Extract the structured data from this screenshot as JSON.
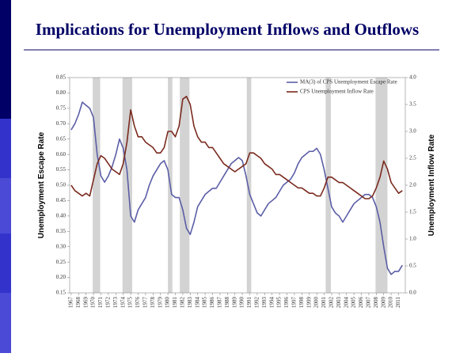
{
  "title": "Implications for Unemployment Inflows and Outflows",
  "chart_data": {
    "type": "line",
    "y_label": "Unemployment Escape Rate",
    "y2_label": "Unemployment Inflow Rate",
    "x": [
      1967.0,
      1967.5,
      1968.0,
      1968.5,
      1969.0,
      1969.5,
      1970.0,
      1970.5,
      1971.0,
      1971.5,
      1972.0,
      1972.5,
      1973.0,
      1973.5,
      1974.0,
      1974.5,
      1975.0,
      1975.5,
      1976.0,
      1976.5,
      1977.0,
      1977.5,
      1978.0,
      1978.5,
      1979.0,
      1979.5,
      1980.0,
      1980.5,
      1981.0,
      1981.5,
      1982.0,
      1982.5,
      1983.0,
      1983.5,
      1984.0,
      1984.5,
      1985.0,
      1985.5,
      1986.0,
      1986.5,
      1987.0,
      1987.5,
      1988.0,
      1988.5,
      1989.0,
      1989.5,
      1990.0,
      1990.5,
      1991.0,
      1991.5,
      1992.0,
      1992.5,
      1993.0,
      1993.5,
      1994.0,
      1994.5,
      1995.0,
      1995.5,
      1996.0,
      1996.5,
      1997.0,
      1997.5,
      1998.0,
      1998.5,
      1999.0,
      1999.5,
      2000.0,
      2000.5,
      2001.0,
      2001.5,
      2002.0,
      2002.5,
      2003.0,
      2003.5,
      2004.0,
      2004.5,
      2005.0,
      2005.5,
      2006.0,
      2006.5,
      2007.0,
      2007.5,
      2008.0,
      2008.5,
      2009.0,
      2009.5,
      2010.0,
      2010.5,
      2011.0,
      2011.5
    ],
    "series": [
      {
        "name": "MA(3) of CPS Unemployment Escape Rate",
        "color": "#5b5ea6",
        "axis": "y",
        "values": [
          0.68,
          0.7,
          0.73,
          0.77,
          0.76,
          0.75,
          0.72,
          0.6,
          0.53,
          0.51,
          0.53,
          0.56,
          0.6,
          0.65,
          0.62,
          0.55,
          0.4,
          0.38,
          0.42,
          0.44,
          0.46,
          0.5,
          0.53,
          0.55,
          0.57,
          0.58,
          0.55,
          0.47,
          0.46,
          0.46,
          0.42,
          0.36,
          0.34,
          0.38,
          0.43,
          0.45,
          0.47,
          0.48,
          0.49,
          0.49,
          0.51,
          0.53,
          0.55,
          0.57,
          0.58,
          0.59,
          0.58,
          0.53,
          0.47,
          0.44,
          0.41,
          0.4,
          0.42,
          0.44,
          0.45,
          0.46,
          0.48,
          0.5,
          0.51,
          0.52,
          0.54,
          0.57,
          0.59,
          0.6,
          0.61,
          0.61,
          0.62,
          0.6,
          0.55,
          0.49,
          0.43,
          0.41,
          0.4,
          0.38,
          0.4,
          0.42,
          0.44,
          0.45,
          0.46,
          0.47,
          0.47,
          0.46,
          0.43,
          0.38,
          0.3,
          0.23,
          0.21,
          0.22,
          0.22,
          0.24
        ]
      },
      {
        "name": "CPS Unemployment Inflow Rate",
        "color": "#7a2a1e",
        "axis": "y2",
        "values": [
          2.0,
          1.9,
          1.85,
          1.8,
          1.85,
          1.8,
          2.1,
          2.4,
          2.55,
          2.5,
          2.4,
          2.3,
          2.25,
          2.2,
          2.4,
          2.8,
          3.4,
          3.1,
          2.9,
          2.9,
          2.8,
          2.75,
          2.7,
          2.6,
          2.6,
          2.7,
          3.0,
          3.0,
          2.9,
          3.1,
          3.6,
          3.65,
          3.5,
          3.1,
          2.9,
          2.8,
          2.8,
          2.7,
          2.7,
          2.6,
          2.5,
          2.4,
          2.35,
          2.3,
          2.25,
          2.3,
          2.35,
          2.4,
          2.6,
          2.6,
          2.55,
          2.5,
          2.4,
          2.35,
          2.3,
          2.2,
          2.2,
          2.15,
          2.1,
          2.05,
          2.0,
          1.95,
          1.95,
          1.9,
          1.85,
          1.85,
          1.8,
          1.8,
          1.95,
          2.15,
          2.15,
          2.1,
          2.05,
          2.05,
          2.0,
          1.95,
          1.9,
          1.85,
          1.8,
          1.75,
          1.75,
          1.8,
          1.95,
          2.15,
          2.45,
          2.3,
          2.05,
          1.95,
          1.85,
          1.9
        ]
      }
    ],
    "shaded_periods": [
      [
        1969.9,
        1970.9
      ],
      [
        1973.9,
        1975.2
      ],
      [
        1980.0,
        1980.6
      ],
      [
        1981.6,
        1982.9
      ],
      [
        1990.6,
        1991.2
      ],
      [
        2001.2,
        2001.9
      ],
      [
        2007.9,
        2009.5
      ]
    ],
    "shade_color": "#d3d3d3",
    "xlim": [
      1966.8,
      2011.9
    ],
    "xticks": [
      1967,
      1968,
      1969,
      1970,
      1971,
      1972,
      1973,
      1974,
      1975,
      1976,
      1977,
      1978,
      1979,
      1980,
      1981,
      1982,
      1983,
      1984,
      1985,
      1986,
      1987,
      1988,
      1989,
      1990,
      1991,
      1992,
      1993,
      1994,
      1995,
      1996,
      1997,
      1998,
      1999,
      2000,
      2001,
      2002,
      2003,
      2004,
      2005,
      2006,
      2007,
      2008,
      2009,
      2010,
      2011
    ],
    "ylim": [
      0.15,
      0.85
    ],
    "yticks": [
      0.15,
      {
        "value": 0.2,
        "label": "0.20"
      },
      0.25,
      {
        "value": 0.3,
        "label": "0.30"
      },
      0.35,
      {
        "value": 0.4,
        "label": "0.40"
      },
      0.45,
      {
        "value": 0.5,
        "label": "0.50"
      },
      0.55,
      {
        "value": 0.6,
        "label": "0.60"
      },
      0.65,
      {
        "value": 0.7,
        "label": "0.70"
      },
      0.75,
      {
        "value": 0.8,
        "label": "0.80"
      },
      0.85
    ],
    "y2lim": [
      0,
      4
    ],
    "y2ticks": [
      {
        "value": 0,
        "label": "0.0"
      },
      0.5,
      {
        "value": 1,
        "label": "1.0"
      },
      1.5,
      {
        "value": 2,
        "label": "2.0"
      },
      2.5,
      {
        "value": 3,
        "label": "3.0"
      },
      3.5,
      {
        "value": 4,
        "label": "4.0"
      }
    ],
    "legend": "top-right"
  }
}
